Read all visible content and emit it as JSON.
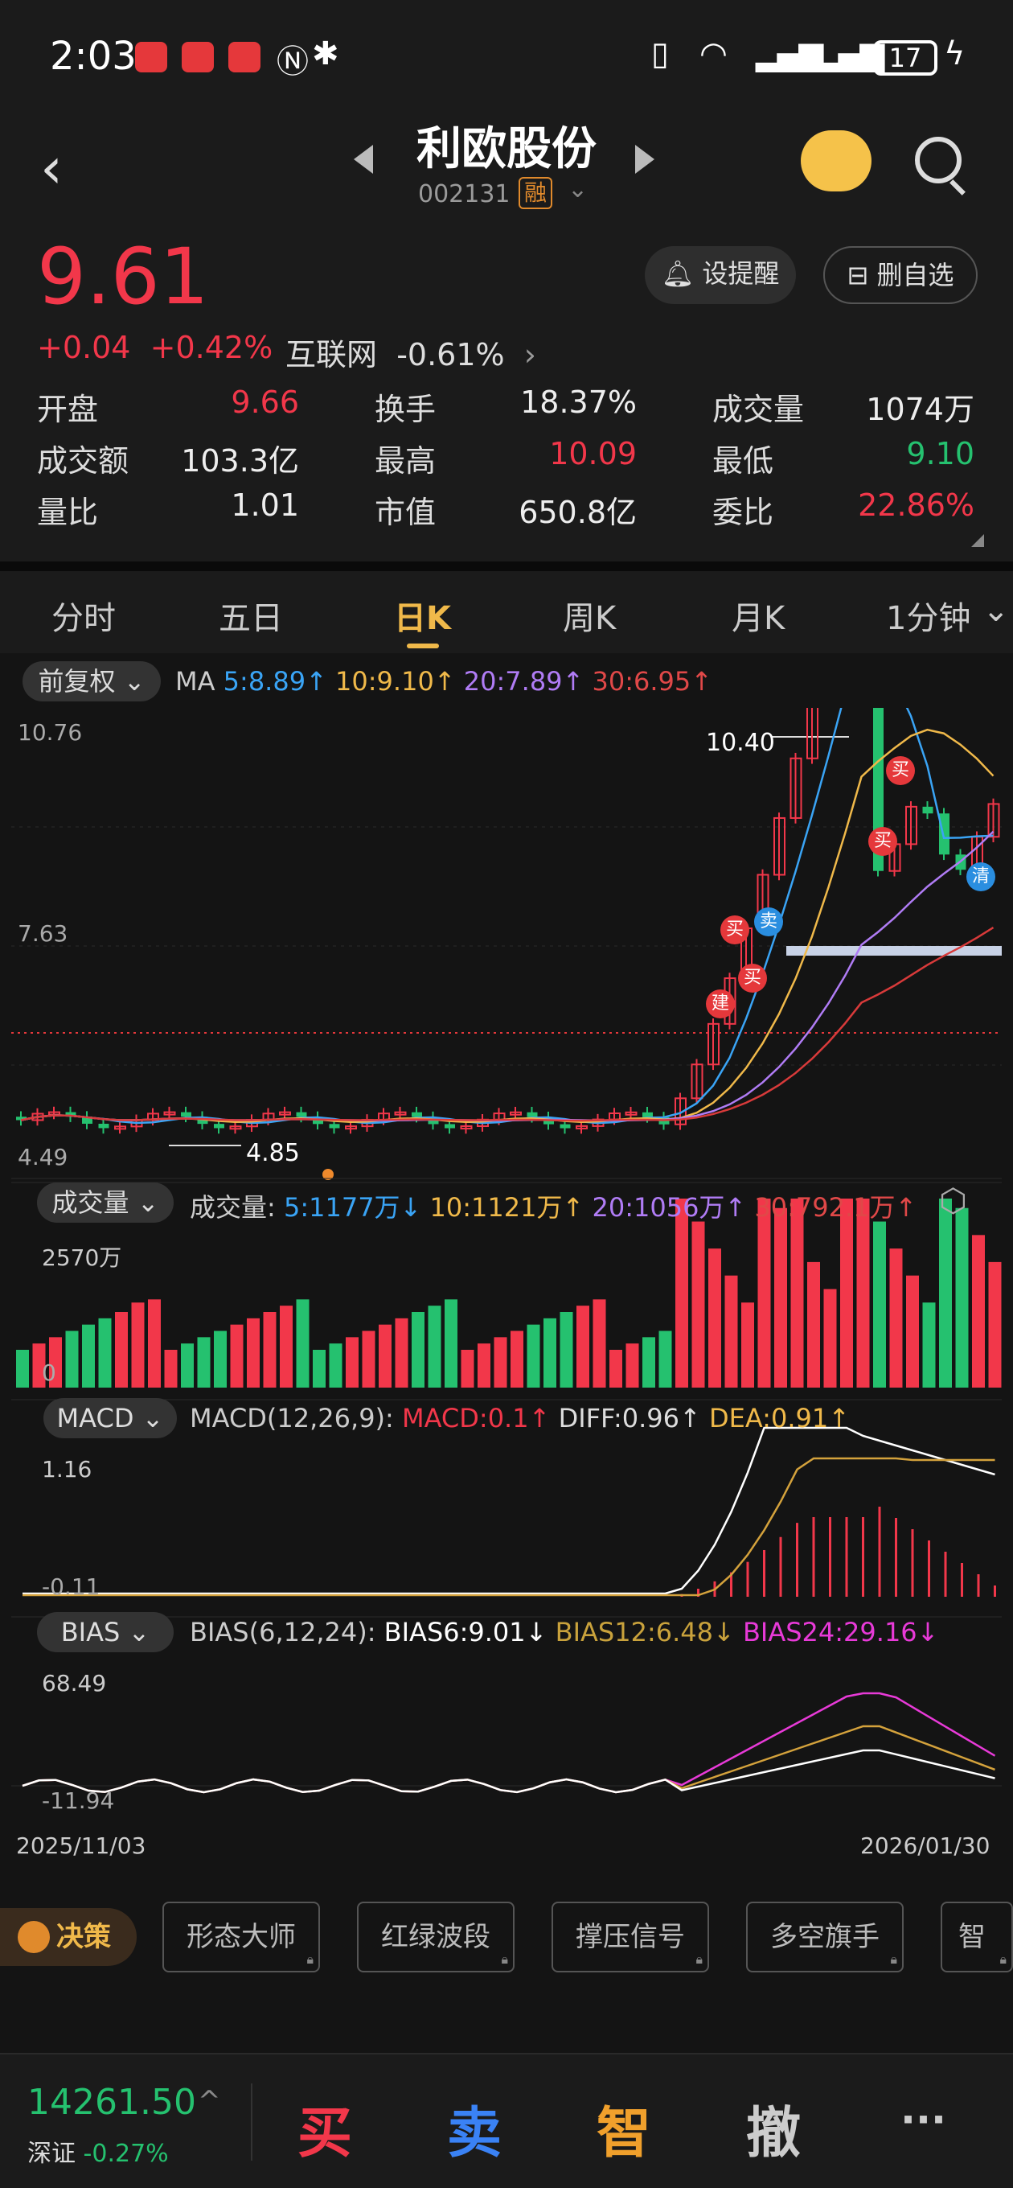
{
  "status": {
    "time": "2:03",
    "battery": "17"
  },
  "header": {
    "title": "利欧股份",
    "code": "002131",
    "badge": "融"
  },
  "quote": {
    "price": "9.61",
    "change": "+0.04",
    "change_pct": "+0.42%",
    "sector": "互联网",
    "sector_pct": "-0.61%",
    "alert_label": "设提醒",
    "remove_label": "删自选",
    "rows": [
      [
        {
          "label": "开盘",
          "value": "9.66",
          "color": "red"
        },
        {
          "label": "换手",
          "value": "18.37%",
          "color": "white"
        },
        {
          "label": "成交量",
          "value": "1074万",
          "color": "white"
        }
      ],
      [
        {
          "label": "成交额",
          "value": "103.3亿",
          "color": "white"
        },
        {
          "label": "最高",
          "value": "10.09",
          "color": "red"
        },
        {
          "label": "最低",
          "value": "9.10",
          "color": "green"
        }
      ],
      [
        {
          "label": "量比",
          "value": "1.01",
          "color": "white"
        },
        {
          "label": "市值",
          "value": "650.8亿",
          "color": "white"
        },
        {
          "label": "委比",
          "value": "22.86%",
          "color": "red"
        }
      ]
    ]
  },
  "tabs": [
    "分时",
    "五日",
    "日K",
    "周K",
    "月K",
    "1分钟"
  ],
  "active_tab": "日K",
  "kline": {
    "adjust_label": "前复权",
    "ma_label": "MA",
    "ma5": "5:8.89↑",
    "ma10": "10:9.10↑",
    "ma20": "20:7.89↑",
    "ma30": "30:6.95↑",
    "y_top": "10.76",
    "y_mid": "7.63",
    "y_bottom": "4.49",
    "high_mark": "10.40",
    "low_mark": "4.85",
    "signals": [
      "建",
      "买",
      "买",
      "卖",
      "买",
      "买",
      "清"
    ]
  },
  "volume": {
    "btn": "成交量",
    "label": "成交量:",
    "v5": "5:1177万↓",
    "v10": "10:1121万↑",
    "v20": "20:1056万↑",
    "v30": "30:792.1万↑",
    "y_top": "2570万",
    "y_bottom": "0"
  },
  "macd": {
    "btn": "MACD",
    "params": "MACD(12,26,9):",
    "macd": "MACD:0.1↑",
    "diff": "DIFF:0.96↑",
    "dea": "DEA:0.91↑",
    "y_top": "1.16",
    "y_bottom": "-0.11"
  },
  "bias": {
    "btn": "BIAS",
    "params": "BIAS(6,12,24):",
    "b6": "BIAS6:9.01↓",
    "b12": "BIAS12:6.48↓",
    "b24": "BIAS24:29.16↓",
    "y_top": "68.49",
    "y_bottom": "-11.94"
  },
  "dates": {
    "start": "2025/11/03",
    "end": "2026/01/30"
  },
  "tools": {
    "juece": "决策",
    "items": [
      "形态大师",
      "红绿波段",
      "撑压信号",
      "多空旗手",
      "智能"
    ]
  },
  "bottom": {
    "index_value": "14261.50",
    "index_name": "深证",
    "index_pct": "-0.27%",
    "buy": "买",
    "sell": "卖",
    "smart": "智",
    "cancel": "撤",
    "more": "···"
  },
  "colors": {
    "up": "#f2374a",
    "down": "#25c16f",
    "ma5": "#3aa4f5",
    "ma10": "#f0b94a",
    "ma20": "#b07cf5",
    "ma30": "#d83a3a",
    "accent": "#f0b94a"
  }
}
